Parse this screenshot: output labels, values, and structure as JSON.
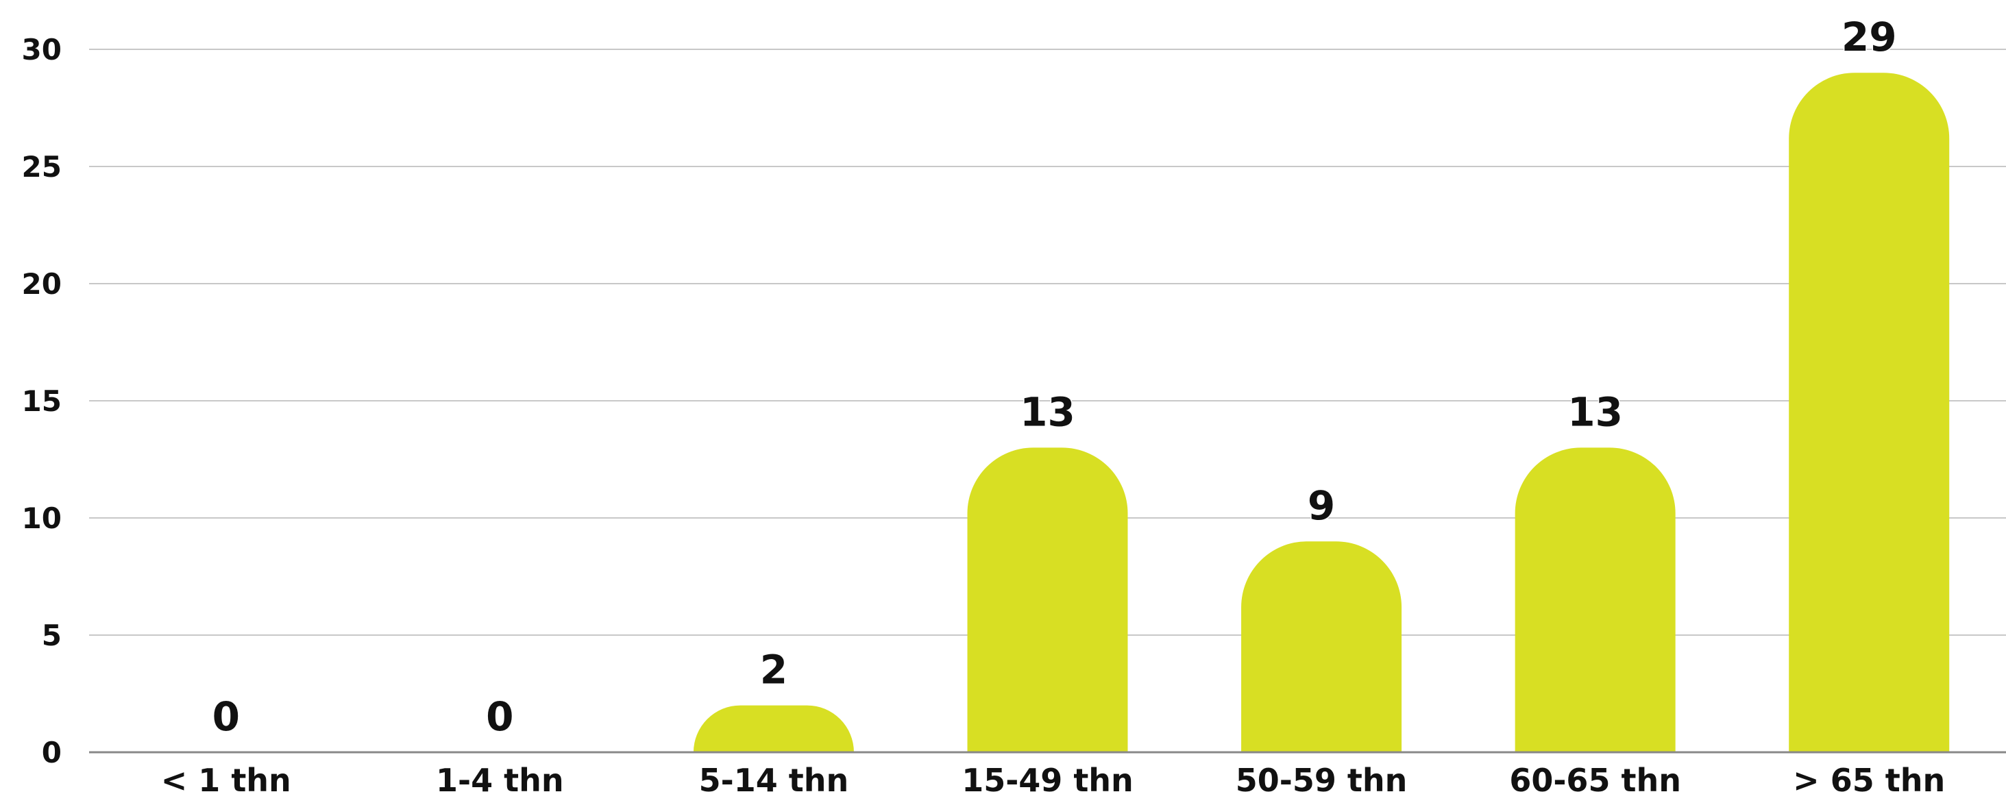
{
  "chart_data": {
    "type": "bar",
    "title": "",
    "xlabel": "",
    "ylabel": "",
    "categories": [
      "< 1 thn",
      "1-4 thn",
      "5-14 thn",
      "15-49 thn",
      "50-59 thn",
      "60-65 thn",
      "> 65 thn"
    ],
    "values": [
      0,
      0,
      2,
      13,
      9,
      13,
      29
    ],
    "ylim": [
      0,
      30
    ],
    "yticks": [
      "0",
      "5",
      "10",
      "15",
      "20",
      "25",
      "30"
    ],
    "data_labels": [
      "0",
      "0",
      "2",
      "13",
      "9",
      "13",
      "29"
    ],
    "grid": true,
    "legend": "none",
    "bar_color": "#d8df23",
    "grid_color": "#c8c8c8",
    "axis_color": "#888888",
    "text_color": "#111111"
  }
}
